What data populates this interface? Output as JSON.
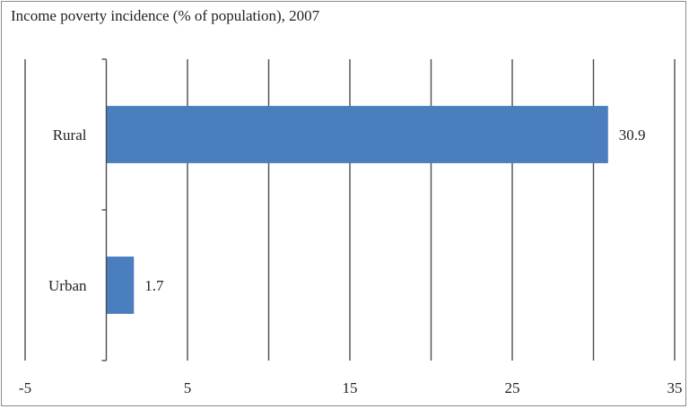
{
  "title": "Income poverty incidence (% of population), 2007",
  "chart_data": {
    "type": "bar",
    "orientation": "horizontal",
    "title": "Income poverty incidence (% of population), 2007",
    "categories": [
      "Rural",
      "Urban"
    ],
    "values": [
      30.9,
      1.7
    ],
    "data_labels": [
      "30.9",
      "1.7"
    ],
    "xlim": [
      -5,
      35
    ],
    "x_ticks": [
      -5,
      5,
      15,
      25,
      35
    ],
    "x_tick_labels": [
      "-5",
      "5",
      "15",
      "25",
      "35"
    ],
    "x_gridlines": [
      -5,
      0,
      5,
      10,
      15,
      20,
      25,
      30,
      35
    ],
    "grid": true,
    "legend": "none",
    "bar_color": "#4a7ebf",
    "xlabel": "",
    "ylabel": ""
  }
}
